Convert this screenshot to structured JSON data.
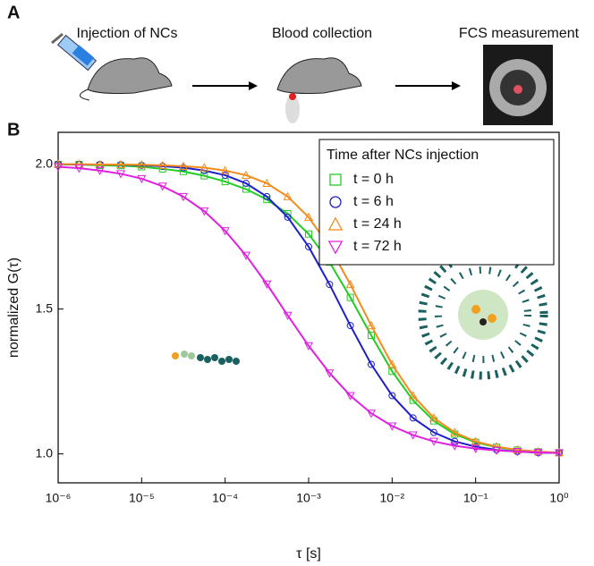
{
  "panel_a": {
    "label": "A",
    "steps": [
      "Injection of NCs",
      "Blood collection",
      "FCS measurement"
    ]
  },
  "chart_data": {
    "type": "scatter",
    "panel_label": "B",
    "x_label": "τ [s]",
    "y_label": "normalized G(τ)",
    "log_x": true,
    "xlim": [
      1e-06,
      1
    ],
    "ylim": [
      0.9,
      2.11
    ],
    "xticks": [
      {
        "value": 1e-06,
        "label": "10⁻⁶"
      },
      {
        "value": 1e-05,
        "label": "10⁻⁵"
      },
      {
        "value": 0.0001,
        "label": "10⁻⁴"
      },
      {
        "value": 0.001,
        "label": "10⁻³"
      },
      {
        "value": 0.01,
        "label": "10⁻²"
      },
      {
        "value": 0.1,
        "label": "10⁻¹"
      },
      {
        "value": 1,
        "label": "10⁰"
      }
    ],
    "yticks": [
      {
        "value": 1,
        "label": "1.0"
      },
      {
        "value": 1.5,
        "label": "1.5"
      },
      {
        "value": 2,
        "label": "2.0"
      }
    ],
    "legend_title": "Time after NCs injection",
    "legend_position": "top-right",
    "x": [
      1e-06,
      1.78e-06,
      3.16e-06,
      5.62e-06,
      1e-05,
      1.78e-05,
      3.16e-05,
      5.62e-05,
      0.0001,
      0.000178,
      0.000316,
      0.000562,
      0.001,
      0.00178,
      0.00316,
      0.00562,
      0.01,
      0.0178,
      0.0316,
      0.0562,
      0.1,
      0.178,
      0.316,
      0.562,
      1
    ],
    "series": [
      {
        "name": "t = 0 h",
        "color": "#22cc22",
        "marker": "square",
        "values": [
          1.999,
          1.999,
          1.996,
          1.995,
          1.991,
          1.984,
          1.975,
          1.96,
          1.94,
          1.914,
          1.878,
          1.829,
          1.759,
          1.662,
          1.54,
          1.409,
          1.285,
          1.185,
          1.114,
          1.068,
          1.04,
          1.023,
          1.013,
          1.007,
          1.004
        ]
      },
      {
        "name": "t = 6 h",
        "color": "#1f1fcc",
        "marker": "circle",
        "values": [
          2.0,
          1.999,
          1.999,
          1.998,
          1.996,
          1.993,
          1.988,
          1.978,
          1.962,
          1.934,
          1.888,
          1.817,
          1.715,
          1.585,
          1.443,
          1.309,
          1.201,
          1.124,
          1.074,
          1.043,
          1.025,
          1.014,
          1.008,
          1.004,
          1.003
        ]
      },
      {
        "name": "t = 24 h",
        "color": "#f28c1c",
        "marker": "triangle-up",
        "values": [
          2.0,
          2.0,
          1.999,
          1.999,
          1.998,
          1.996,
          1.993,
          1.988,
          1.978,
          1.962,
          1.934,
          1.888,
          1.817,
          1.715,
          1.585,
          1.443,
          1.309,
          1.201,
          1.124,
          1.074,
          1.043,
          1.025,
          1.014,
          1.008,
          1.004
        ]
      },
      {
        "name": "t = 72 h",
        "color": "#e020e0",
        "marker": "triangle-down",
        "values": [
          1.991,
          1.986,
          1.978,
          1.967,
          1.95,
          1.924,
          1.888,
          1.838,
          1.77,
          1.685,
          1.586,
          1.478,
          1.373,
          1.279,
          1.201,
          1.14,
          1.096,
          1.065,
          1.043,
          1.028,
          1.018,
          1.012,
          1.008,
          1.005,
          1.003
        ]
      }
    ]
  }
}
